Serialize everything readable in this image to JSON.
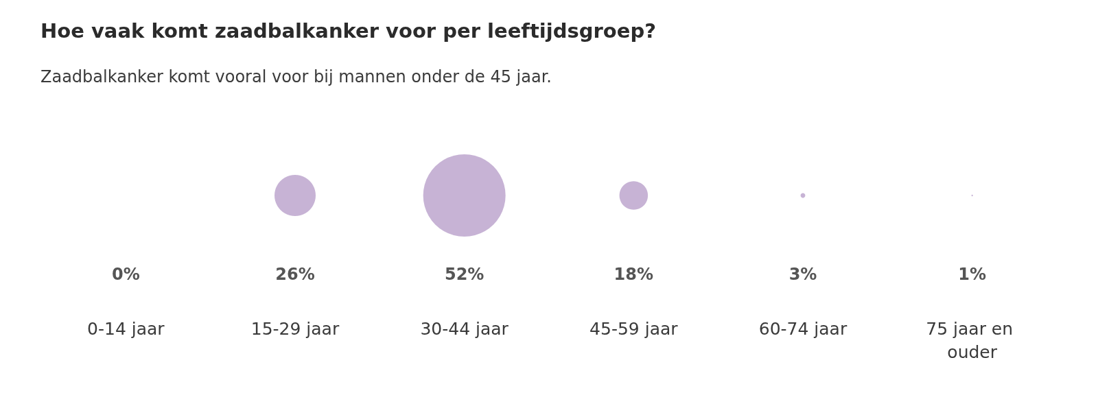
{
  "chart_data": {
    "type": "other",
    "title": "Hoe vaak komt zaadbalkanker voor per leeftijdsgroep?",
    "subtitle": "Zaadbalkanker komt vooral voor bij mannen onder de 45 jaar.",
    "categories": [
      "0-14 jaar",
      "15-29 jaar",
      "30-44 jaar",
      "45-59 jaar",
      "60-74 jaar",
      "75 jaar en ouder"
    ],
    "series": [
      {
        "color": "#b9a0cb",
        "values": [
          0,
          26,
          52,
          18,
          3,
          1
        ],
        "value_labels": [
          "0%",
          "26%",
          "52%",
          "18%",
          "3%",
          "1%"
        ]
      }
    ]
  }
}
